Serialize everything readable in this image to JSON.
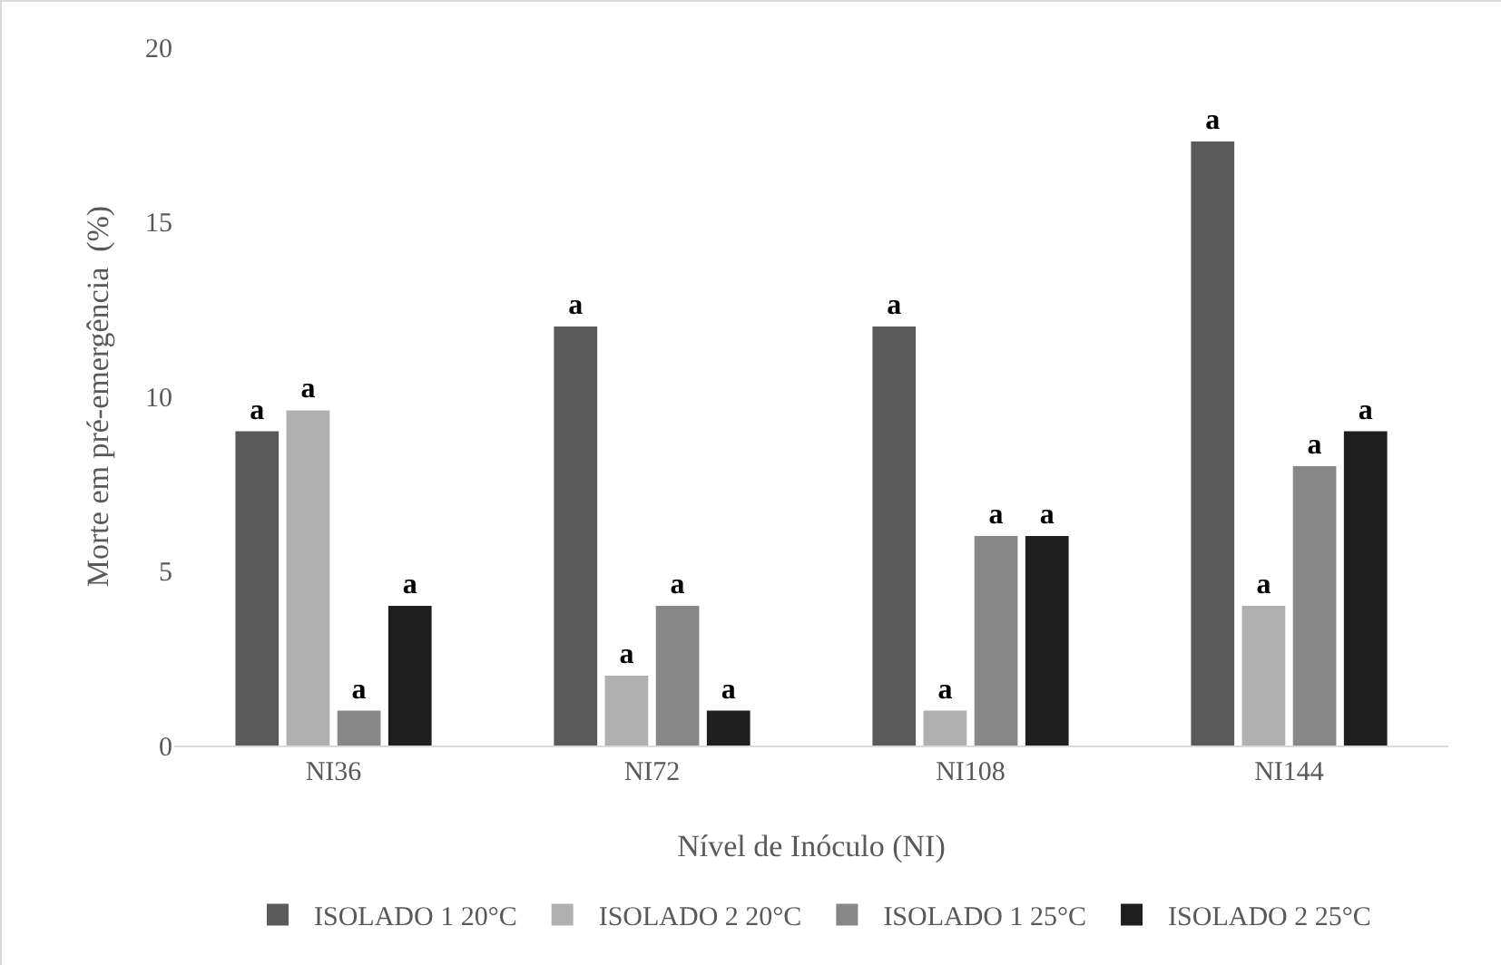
{
  "chart_data": {
    "type": "bar",
    "xlabel": "Nível de Inóculo (NI)",
    "ylabel": "Morte em pré-emergência  (%)",
    "categories": [
      "NI36",
      "NI72",
      "NI108",
      "NI144"
    ],
    "series": [
      {
        "name": "ISOLADO 1 20°C",
        "color": "#5a5a5a",
        "values": [
          9,
          12,
          12,
          17.3
        ],
        "value_labels": [
          "a",
          "a",
          "a",
          "a"
        ]
      },
      {
        "name": "ISOLADO 2 20°C",
        "color": "#b0b0b0",
        "values": [
          9.6,
          2,
          1,
          4
        ],
        "value_labels": [
          "a",
          "a",
          "a",
          "a"
        ]
      },
      {
        "name": "ISOLADO 1 25°C",
        "color": "#878787",
        "values": [
          1,
          4,
          6,
          8
        ],
        "value_labels": [
          "a",
          "a",
          "a",
          "a"
        ]
      },
      {
        "name": "ISOLADO 2 25°C",
        "color": "#1e1e1e",
        "values": [
          4,
          1,
          6,
          9
        ],
        "value_labels": [
          "a",
          "a",
          "a",
          "a"
        ]
      }
    ],
    "ylim": [
      0,
      20
    ],
    "yticks": [
      0,
      5,
      10,
      15,
      20
    ],
    "grid": false,
    "legend": "bottom"
  }
}
